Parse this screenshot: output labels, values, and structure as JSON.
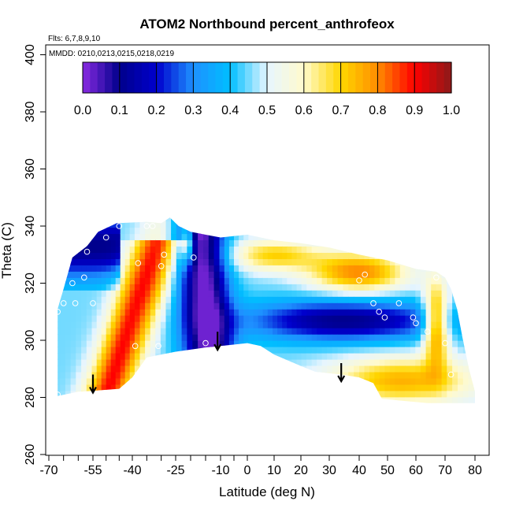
{
  "chart_data": {
    "type": "heatmap",
    "title": "ATOM2 Northbound percent_anthrofeox",
    "annotations": {
      "flights": "Flts: 6,7,8,9,10",
      "dates": "MMDD: 0210,0213,0215,0218,0219"
    },
    "xlabel": "Latitude (deg N)",
    "ylabel": "Theta (C)",
    "xlim": [
      -70,
      85
    ],
    "ylim": [
      260,
      402
    ],
    "x_ticks": [
      -70,
      -55,
      -40,
      -25,
      -10,
      0,
      10,
      20,
      30,
      40,
      50,
      60,
      70,
      80
    ],
    "x_tick_labels": [
      "-70",
      "-55",
      "-40",
      "-25",
      "-10",
      "0",
      "10",
      "20",
      "30",
      "40",
      "50",
      "60",
      "70",
      "80"
    ],
    "x_minor_ticks": [
      -65,
      -60,
      -50,
      -45,
      -35,
      -30,
      -20,
      -15,
      -5
    ],
    "y_ticks": [
      260,
      280,
      300,
      320,
      340,
      360,
      380,
      400
    ],
    "y_tick_labels": [
      "260",
      "280",
      "300",
      "320",
      "340",
      "360",
      "380",
      "400"
    ],
    "colorbar": {
      "range": [
        0,
        1
      ],
      "ticks": [
        0.0,
        0.1,
        0.2,
        0.3,
        0.4,
        0.5,
        0.6,
        0.7,
        0.8,
        0.9,
        1.0
      ],
      "tick_labels": [
        "0.0",
        "0.1",
        "0.2",
        "0.3",
        "0.4",
        "0.5",
        "0.6",
        "0.7",
        "0.8",
        "0.9",
        "1.0"
      ],
      "stops": [
        {
          "v": 0.0,
          "c": "#8a2be2"
        },
        {
          "v": 0.1,
          "c": "#00008b"
        },
        {
          "v": 0.2,
          "c": "#0000cd"
        },
        {
          "v": 0.3,
          "c": "#1e90ff"
        },
        {
          "v": 0.4,
          "c": "#00bfff"
        },
        {
          "v": 0.5,
          "c": "#e6f5ff"
        },
        {
          "v": 0.6,
          "c": "#fffacd"
        },
        {
          "v": 0.7,
          "c": "#ffd700"
        },
        {
          "v": 0.8,
          "c": "#ff8c00"
        },
        {
          "v": 0.9,
          "c": "#ff0000"
        },
        {
          "v": 1.0,
          "c": "#8b1a1a"
        }
      ]
    },
    "sample_points": [
      [
        -67,
        310
      ],
      [
        -65,
        313
      ],
      [
        -63,
        331
      ],
      [
        -62,
        320
      ],
      [
        -61,
        313
      ],
      [
        -58,
        322
      ],
      [
        -57,
        331
      ],
      [
        -55,
        313
      ],
      [
        -50,
        336
      ],
      [
        -45,
        340
      ],
      [
        -39,
        298
      ],
      [
        -38,
        327
      ],
      [
        -35,
        340
      ],
      [
        -33,
        340
      ],
      [
        -31,
        298
      ],
      [
        -30,
        326
      ],
      [
        -29,
        330
      ],
      [
        -19,
        329
      ],
      [
        -15,
        299
      ],
      [
        -67,
        281
      ],
      [
        40,
        321
      ],
      [
        42,
        323
      ],
      [
        45,
        313
      ],
      [
        47,
        310
      ],
      [
        49,
        308
      ],
      [
        54,
        313
      ],
      [
        59,
        308
      ],
      [
        60,
        306
      ],
      [
        64,
        303
      ],
      [
        67,
        322
      ],
      [
        70,
        299
      ],
      [
        72,
        288
      ]
    ],
    "arrows": [
      {
        "lat": -55,
        "theta": 288
      },
      {
        "lat": -11,
        "theta": 303
      },
      {
        "lat": 34,
        "theta": 292
      }
    ]
  }
}
